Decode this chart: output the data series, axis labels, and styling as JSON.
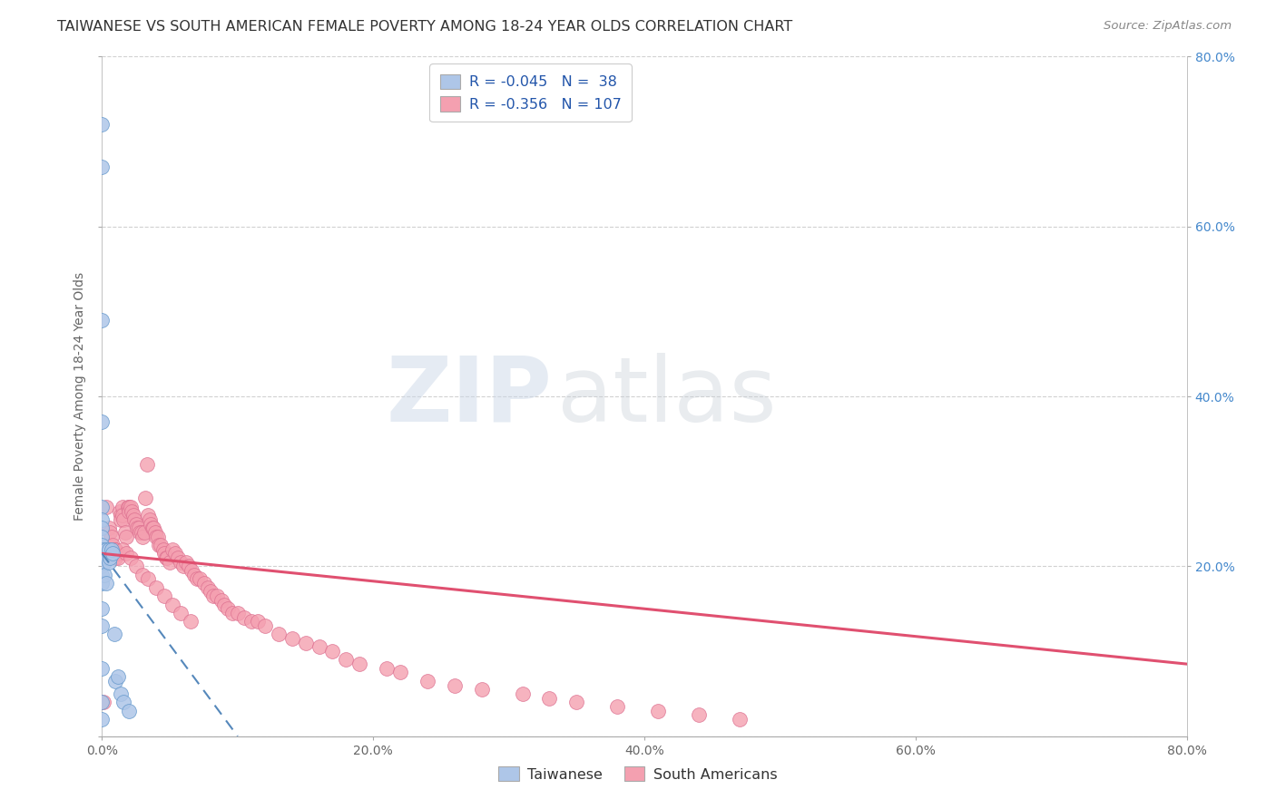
{
  "title": "TAIWANESE VS SOUTH AMERICAN FEMALE POVERTY AMONG 18-24 YEAR OLDS CORRELATION CHART",
  "source": "Source: ZipAtlas.com",
  "ylabel": "Female Poverty Among 18-24 Year Olds",
  "xlim": [
    0.0,
    0.8
  ],
  "ylim": [
    0.0,
    0.8
  ],
  "xticks": [
    0.0,
    0.2,
    0.4,
    0.6,
    0.8
  ],
  "yticks": [
    0.0,
    0.2,
    0.4,
    0.6,
    0.8
  ],
  "xticklabels": [
    "0.0%",
    "20.0%",
    "40.0%",
    "60.0%",
    "80.0%"
  ],
  "right_yticklabels": [
    "20.0%",
    "40.0%",
    "60.0%",
    "80.0%"
  ],
  "right_yticks": [
    0.2,
    0.4,
    0.6,
    0.8
  ],
  "grid_color": "#cccccc",
  "background_color": "#ffffff",
  "watermark_zip": "ZIP",
  "watermark_atlas": "atlas",
  "legend_line1": "R = -0.045   N =  38",
  "legend_line2": "R = -0.356   N = 107",
  "taiwanese_color": "#aec6e8",
  "south_american_color": "#f4a0b0",
  "taiwanese_edge": "#6699cc",
  "south_american_edge": "#dd7090",
  "trend_taiwanese_color": "#5588bb",
  "trend_south_american_color": "#e05070",
  "taiwanese_x": [
    0.0,
    0.0,
    0.0,
    0.0,
    0.0,
    0.0,
    0.0,
    0.0,
    0.0,
    0.0,
    0.0,
    0.0,
    0.0,
    0.0,
    0.0,
    0.0,
    0.0,
    0.0,
    0.0,
    0.0,
    0.001,
    0.001,
    0.002,
    0.002,
    0.003,
    0.003,
    0.004,
    0.005,
    0.005,
    0.006,
    0.007,
    0.008,
    0.009,
    0.01,
    0.012,
    0.014,
    0.016,
    0.02
  ],
  "taiwanese_y": [
    0.72,
    0.67,
    0.49,
    0.37,
    0.27,
    0.255,
    0.245,
    0.235,
    0.225,
    0.215,
    0.21,
    0.205,
    0.2,
    0.19,
    0.18,
    0.15,
    0.13,
    0.08,
    0.04,
    0.02,
    0.22,
    0.21,
    0.205,
    0.19,
    0.22,
    0.18,
    0.21,
    0.22,
    0.205,
    0.21,
    0.22,
    0.215,
    0.12,
    0.065,
    0.07,
    0.05,
    0.04,
    0.03
  ],
  "south_american_x": [
    0.001,
    0.003,
    0.005,
    0.006,
    0.007,
    0.008,
    0.009,
    0.01,
    0.01,
    0.01,
    0.012,
    0.013,
    0.014,
    0.014,
    0.015,
    0.015,
    0.016,
    0.017,
    0.018,
    0.019,
    0.02,
    0.02,
    0.021,
    0.022,
    0.023,
    0.024,
    0.025,
    0.026,
    0.027,
    0.028,
    0.029,
    0.03,
    0.031,
    0.032,
    0.033,
    0.034,
    0.035,
    0.036,
    0.037,
    0.038,
    0.039,
    0.04,
    0.041,
    0.042,
    0.043,
    0.045,
    0.046,
    0.047,
    0.048,
    0.05,
    0.052,
    0.054,
    0.056,
    0.058,
    0.06,
    0.062,
    0.064,
    0.066,
    0.068,
    0.07,
    0.072,
    0.075,
    0.078,
    0.08,
    0.082,
    0.085,
    0.088,
    0.09,
    0.093,
    0.096,
    0.1,
    0.105,
    0.11,
    0.115,
    0.12,
    0.13,
    0.14,
    0.15,
    0.16,
    0.17,
    0.18,
    0.19,
    0.21,
    0.22,
    0.24,
    0.26,
    0.28,
    0.31,
    0.33,
    0.35,
    0.38,
    0.41,
    0.44,
    0.47,
    0.01,
    0.012,
    0.015,
    0.018,
    0.021,
    0.025,
    0.03,
    0.034,
    0.04,
    0.046,
    0.052,
    0.058,
    0.065
  ],
  "south_american_y": [
    0.04,
    0.27,
    0.245,
    0.24,
    0.235,
    0.225,
    0.22,
    0.22,
    0.215,
    0.21,
    0.215,
    0.265,
    0.26,
    0.255,
    0.27,
    0.26,
    0.255,
    0.24,
    0.235,
    0.27,
    0.27,
    0.265,
    0.27,
    0.265,
    0.26,
    0.255,
    0.25,
    0.245,
    0.245,
    0.24,
    0.24,
    0.235,
    0.24,
    0.28,
    0.32,
    0.26,
    0.255,
    0.25,
    0.245,
    0.245,
    0.24,
    0.235,
    0.235,
    0.225,
    0.225,
    0.22,
    0.215,
    0.21,
    0.21,
    0.205,
    0.22,
    0.215,
    0.21,
    0.205,
    0.2,
    0.205,
    0.2,
    0.195,
    0.19,
    0.185,
    0.185,
    0.18,
    0.175,
    0.17,
    0.165,
    0.165,
    0.16,
    0.155,
    0.15,
    0.145,
    0.145,
    0.14,
    0.135,
    0.135,
    0.13,
    0.12,
    0.115,
    0.11,
    0.105,
    0.1,
    0.09,
    0.085,
    0.08,
    0.075,
    0.065,
    0.06,
    0.055,
    0.05,
    0.045,
    0.04,
    0.035,
    0.03,
    0.025,
    0.02,
    0.22,
    0.21,
    0.22,
    0.215,
    0.21,
    0.2,
    0.19,
    0.185,
    0.175,
    0.165,
    0.155,
    0.145,
    0.135
  ],
  "sa_trend_x0": 0.0,
  "sa_trend_x1": 0.8,
  "sa_trend_y0": 0.215,
  "sa_trend_y1": 0.085,
  "tw_trend_x0": 0.0,
  "tw_trend_x1": 0.1,
  "tw_trend_y0": 0.215,
  "tw_trend_y1": 0.0
}
